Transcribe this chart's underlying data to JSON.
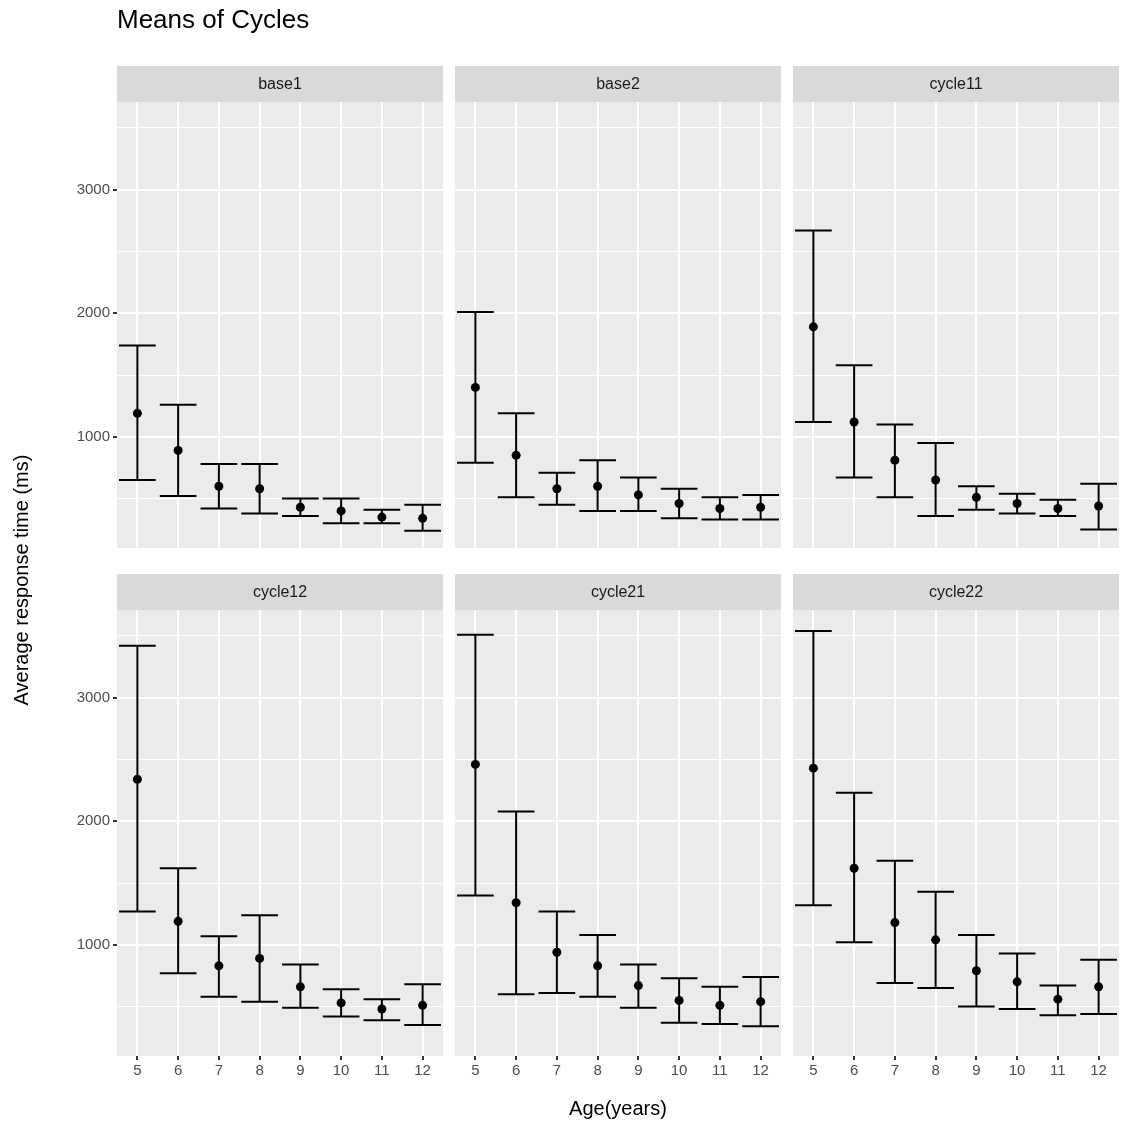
{
  "chart_data": [
    {
      "type": "scatter",
      "title": "Means of Cycles",
      "subtitle": "base1",
      "ylabel": "Average response time (ms)",
      "categories": [
        "5",
        "6",
        "7",
        "8",
        "9",
        "10",
        "11",
        "12"
      ],
      "color": "#000000",
      "marker": "circle",
      "grid": true,
      "tick_labels": "y",
      "ylim": [
        100,
        3710
      ],
      "yticks": [
        {
          "value": 500,
          "label": null
        },
        1000,
        {
          "value": 1500,
          "label": null
        },
        2000,
        {
          "value": 2500,
          "label": null
        },
        3000,
        {
          "value": 3500,
          "label": null
        }
      ],
      "values": [
        1190,
        890,
        600,
        580,
        430,
        400,
        350,
        340
      ],
      "errors": [
        [
          650,
          1740
        ],
        [
          520,
          1260
        ],
        [
          420,
          780
        ],
        [
          380,
          780
        ],
        [
          360,
          500
        ],
        [
          300,
          500
        ],
        [
          300,
          410
        ],
        [
          240,
          450
        ]
      ]
    },
    {
      "type": "scatter",
      "subtitle": "base2",
      "categories": [
        "5",
        "6",
        "7",
        "8",
        "9",
        "10",
        "11",
        "12"
      ],
      "color": "#000000",
      "marker": "circle",
      "grid": true,
      "tick_labels": false,
      "ylim": [
        100,
        3710
      ],
      "yticks": [
        {
          "value": 500,
          "label": null
        },
        1000,
        {
          "value": 1500,
          "label": null
        },
        2000,
        {
          "value": 2500,
          "label": null
        },
        3000,
        {
          "value": 3500,
          "label": null
        }
      ],
      "values": [
        1400,
        850,
        580,
        600,
        530,
        460,
        420,
        430
      ],
      "errors": [
        [
          790,
          2010
        ],
        [
          510,
          1190
        ],
        [
          450,
          710
        ],
        [
          400,
          810
        ],
        [
          400,
          670
        ],
        [
          340,
          580
        ],
        [
          330,
          510
        ],
        [
          330,
          530
        ]
      ]
    },
    {
      "type": "scatter",
      "subtitle": "cycle11",
      "categories": [
        "5",
        "6",
        "7",
        "8",
        "9",
        "10",
        "11",
        "12"
      ],
      "color": "#000000",
      "marker": "circle",
      "grid": true,
      "tick_labels": false,
      "ylim": [
        100,
        3710
      ],
      "yticks": [
        {
          "value": 500,
          "label": null
        },
        1000,
        {
          "value": 1500,
          "label": null
        },
        2000,
        {
          "value": 2500,
          "label": null
        },
        3000,
        {
          "value": 3500,
          "label": null
        }
      ],
      "values": [
        1890,
        1120,
        810,
        650,
        510,
        460,
        420,
        440
      ],
      "errors": [
        [
          1120,
          2670
        ],
        [
          670,
          1580
        ],
        [
          510,
          1100
        ],
        [
          360,
          950
        ],
        [
          410,
          600
        ],
        [
          380,
          540
        ],
        [
          360,
          490
        ],
        [
          250,
          620
        ]
      ]
    },
    {
      "type": "scatter",
      "subtitle": "cycle12",
      "categories": [
        "5",
        "6",
        "7",
        "8",
        "9",
        "10",
        "11",
        "12"
      ],
      "color": "#000000",
      "marker": "circle",
      "grid": true,
      "ylim": [
        100,
        3710
      ],
      "yticks": [
        {
          "value": 500,
          "label": null
        },
        1000,
        {
          "value": 1500,
          "label": null
        },
        2000,
        {
          "value": 2500,
          "label": null
        },
        3000,
        {
          "value": 3500,
          "label": null
        }
      ],
      "values": [
        2340,
        1190,
        830,
        890,
        660,
        530,
        480,
        510
      ],
      "errors": [
        [
          1270,
          3420
        ],
        [
          770,
          1620
        ],
        [
          580,
          1070
        ],
        [
          540,
          1240
        ],
        [
          490,
          840
        ],
        [
          420,
          640
        ],
        [
          390,
          560
        ],
        [
          350,
          680
        ]
      ]
    },
    {
      "type": "scatter",
      "subtitle": "cycle21",
      "xlabel": "Age(years)",
      "categories": [
        "5",
        "6",
        "7",
        "8",
        "9",
        "10",
        "11",
        "12"
      ],
      "color": "#000000",
      "marker": "circle",
      "grid": true,
      "tick_labels": "x",
      "ylim": [
        100,
        3710
      ],
      "yticks": [
        {
          "value": 500,
          "label": null
        },
        1000,
        {
          "value": 1500,
          "label": null
        },
        2000,
        {
          "value": 2500,
          "label": null
        },
        3000,
        {
          "value": 3500,
          "label": null
        }
      ],
      "values": [
        2460,
        1340,
        940,
        830,
        670,
        550,
        510,
        540
      ],
      "errors": [
        [
          1400,
          3510
        ],
        [
          600,
          2080
        ],
        [
          610,
          1270
        ],
        [
          580,
          1080
        ],
        [
          490,
          840
        ],
        [
          370,
          730
        ],
        [
          360,
          660
        ],
        [
          340,
          740
        ]
      ]
    },
    {
      "type": "scatter",
      "subtitle": "cycle22",
      "categories": [
        "5",
        "6",
        "7",
        "8",
        "9",
        "10",
        "11",
        "12"
      ],
      "color": "#000000",
      "marker": "circle",
      "grid": true,
      "tick_labels": "x",
      "ylim": [
        100,
        3710
      ],
      "yticks": [
        {
          "value": 500,
          "label": null
        },
        1000,
        {
          "value": 1500,
          "label": null
        },
        2000,
        {
          "value": 2500,
          "label": null
        },
        3000,
        {
          "value": 3500,
          "label": null
        }
      ],
      "values": [
        2430,
        1620,
        1180,
        1040,
        790,
        700,
        560,
        660
      ],
      "errors": [
        [
          1320,
          3540
        ],
        [
          1020,
          2230
        ],
        [
          690,
          1680
        ],
        [
          650,
          1430
        ],
        [
          500,
          1080
        ],
        [
          480,
          930
        ],
        [
          430,
          670
        ],
        [
          440,
          880
        ]
      ]
    }
  ]
}
